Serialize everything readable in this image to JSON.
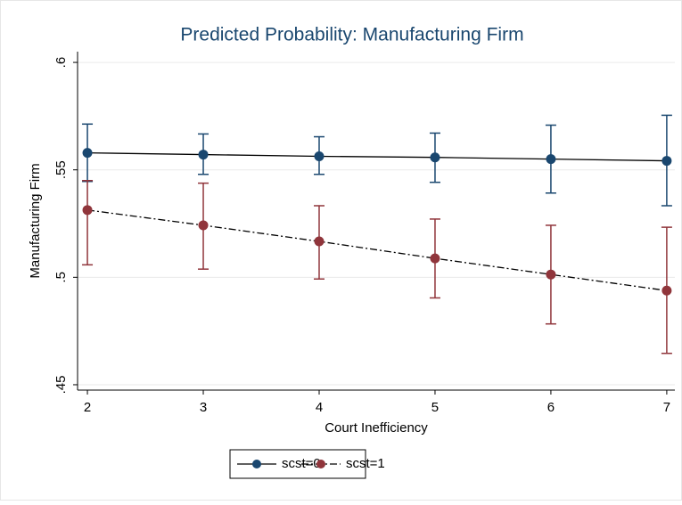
{
  "chart_data": {
    "type": "line",
    "title": "Predicted Probability: Manufacturing Firm",
    "x_label": "Court Inefficiency",
    "y_label": "Manufacturing Firm",
    "x": [
      2,
      3,
      4,
      5,
      6,
      7
    ],
    "xlim": [
      1.915,
      7.07
    ],
    "xticks": [
      2,
      3,
      4,
      5,
      6,
      7
    ],
    "ylim": [
      0.4475,
      0.605
    ],
    "yticks": [
      {
        "value": 0.45,
        "label": ".45"
      },
      {
        "value": 0.5,
        "label": ".5"
      },
      {
        "value": 0.55,
        "label": ".55"
      },
      {
        "value": 0.6,
        "label": ".6"
      }
    ],
    "grid": true,
    "legend": "bottom",
    "series": [
      {
        "name": "scst=0",
        "color": "#1a476f",
        "line_color": "#000000",
        "line_style": "solid",
        "values": [
          0.5579,
          0.5571,
          0.5563,
          0.5558,
          0.555,
          0.5542
        ],
        "lower": [
          0.5446,
          0.5479,
          0.5479,
          0.5442,
          0.5392,
          0.5333
        ],
        "upper": [
          0.5713,
          0.5667,
          0.5654,
          0.5671,
          0.5708,
          0.5754
        ]
      },
      {
        "name": "scst=1",
        "color": "#90353b",
        "line_color": "#000000",
        "line_style": "dash-dot",
        "values": [
          0.5313,
          0.5242,
          0.5167,
          0.5088,
          0.5013,
          0.4938
        ],
        "lower": [
          0.5058,
          0.5038,
          0.4992,
          0.4904,
          0.4783,
          0.4646
        ],
        "upper": [
          0.545,
          0.5438,
          0.5333,
          0.5271,
          0.5242,
          0.5233
        ]
      }
    ]
  }
}
